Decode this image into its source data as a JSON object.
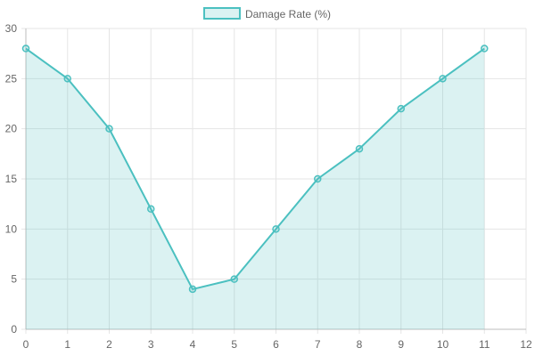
{
  "chart_data": {
    "type": "line",
    "filled": true,
    "x": [
      0,
      1,
      2,
      3,
      4,
      5,
      6,
      7,
      8,
      9,
      10,
      11
    ],
    "series": [
      {
        "name": "Damage Rate (%)",
        "values": [
          28,
          25,
          20,
          12,
          4,
          5,
          10,
          15,
          18,
          22,
          25,
          28
        ],
        "color": "#4bc0c0",
        "fill_color": "rgba(75,192,192,0.2)"
      }
    ],
    "x_ticks": [
      0,
      1,
      2,
      3,
      4,
      5,
      6,
      7,
      8,
      9,
      10,
      11,
      12
    ],
    "y_ticks": [
      0,
      5,
      10,
      15,
      20,
      25,
      30
    ],
    "xlim": [
      0,
      12
    ],
    "ylim": [
      0,
      30
    ],
    "grid": true,
    "legend_position": "top-center"
  }
}
